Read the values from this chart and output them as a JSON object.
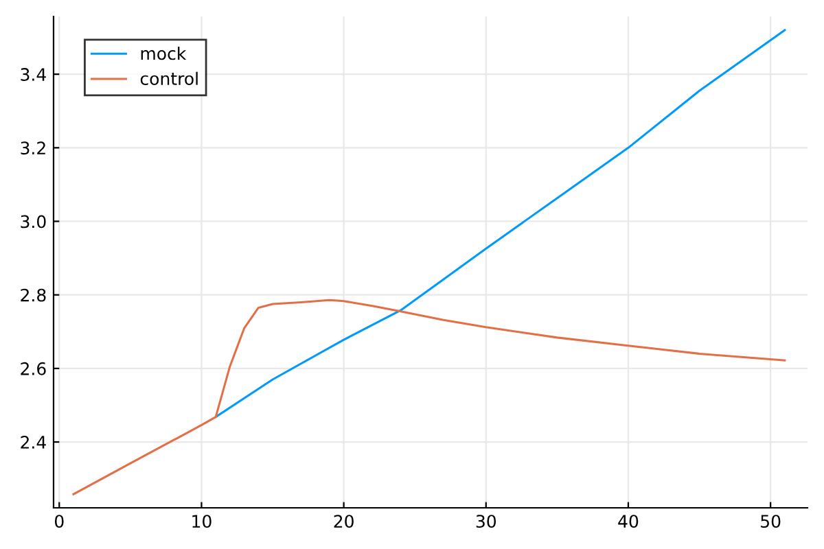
{
  "chart_data": {
    "type": "line",
    "series": [
      {
        "name": "mock",
        "color": "#009afa",
        "x": [
          11,
          15,
          20,
          24,
          30,
          35,
          40,
          45,
          51
        ],
        "values": [
          2.468,
          2.57,
          2.678,
          2.758,
          2.926,
          3.063,
          3.2,
          3.355,
          3.52
        ]
      },
      {
        "name": "control",
        "color": "#e26f46",
        "x": [
          1,
          5,
          10,
          11,
          12,
          13,
          14,
          15,
          17,
          19,
          20,
          22,
          24,
          27,
          30,
          35,
          40,
          45,
          51
        ],
        "values": [
          2.258,
          2.342,
          2.446,
          2.468,
          2.606,
          2.709,
          2.765,
          2.775,
          2.78,
          2.786,
          2.783,
          2.77,
          2.755,
          2.732,
          2.712,
          2.684,
          2.662,
          2.64,
          2.622
        ]
      }
    ],
    "xlim": [
      -0.4,
      52.6
    ],
    "ylim": [
      2.221,
      3.557
    ],
    "xticks": [
      0,
      10,
      20,
      30,
      40,
      50
    ],
    "yticks": [
      {
        "value": 2.4,
        "label": "2.4"
      },
      {
        "value": 2.6,
        "label": "2.6"
      },
      {
        "value": 2.8,
        "label": "2.8"
      },
      {
        "value": 3.0,
        "label": "3.0"
      },
      {
        "value": 3.2,
        "label": "3.2"
      },
      {
        "value": 3.4,
        "label": "3.4"
      }
    ],
    "grid": true,
    "legend": "top left"
  }
}
